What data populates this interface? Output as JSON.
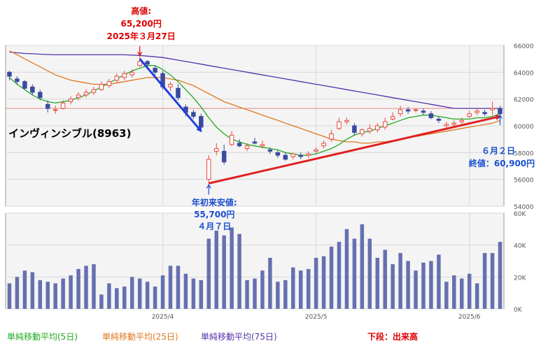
{
  "chart_data": {
    "type": "candlestick",
    "title": "インヴィンシブル(8963)",
    "price_axis": {
      "min": 54000,
      "max": 66000,
      "ticks": [
        "66000",
        "64000",
        "62000",
        "60000",
        "58000",
        "56000",
        "54000"
      ]
    },
    "volume_axis": {
      "max": 60000,
      "ticks": [
        "60K",
        "40K",
        "20K",
        "0K"
      ]
    },
    "x_labels": [
      {
        "index": 20,
        "label": "2025/4"
      },
      {
        "index": 40,
        "label": "2025/5"
      },
      {
        "index": 60,
        "label": "2025/6"
      }
    ],
    "reference_price": 61300,
    "candles": [
      [
        64000,
        64100,
        63400,
        63700
      ],
      [
        63500,
        63700,
        63100,
        63300
      ],
      [
        63300,
        63400,
        62700,
        62800
      ],
      [
        62900,
        63100,
        62300,
        62500
      ],
      [
        62500,
        62700,
        61900,
        62100
      ],
      [
        61600,
        61900,
        61000,
        61300
      ],
      [
        61200,
        61500,
        60900,
        61200
      ],
      [
        61300,
        61900,
        61200,
        61700
      ],
      [
        61800,
        62200,
        61600,
        62000
      ],
      [
        62100,
        62500,
        61900,
        62300
      ],
      [
        62300,
        62700,
        62100,
        62500
      ],
      [
        62500,
        62900,
        62300,
        62700
      ],
      [
        62700,
        63300,
        62600,
        63100
      ],
      [
        63000,
        63500,
        62800,
        63300
      ],
      [
        63400,
        63900,
        63200,
        63700
      ],
      [
        63600,
        64100,
        63400,
        63900
      ],
      [
        63800,
        64200,
        63600,
        64000
      ],
      [
        64500,
        65200,
        64400,
        64800
      ],
      [
        64800,
        64900,
        64300,
        64600
      ],
      [
        64300,
        64500,
        63800,
        64000
      ],
      [
        63900,
        64100,
        62700,
        62900
      ],
      [
        62900,
        63300,
        62600,
        63100
      ],
      [
        62800,
        63100,
        61900,
        62100
      ],
      [
        61400,
        61600,
        60700,
        61000
      ],
      [
        61000,
        61200,
        60500,
        60700
      ],
      [
        60700,
        60900,
        59600,
        59900
      ],
      [
        56000,
        57800,
        55700,
        57500
      ],
      [
        58100,
        58700,
        57800,
        58300
      ],
      [
        58100,
        58600,
        57100,
        57300
      ],
      [
        58600,
        59600,
        58500,
        59300
      ],
      [
        58700,
        59000,
        58400,
        58500
      ],
      [
        58300,
        58700,
        58100,
        58500
      ],
      [
        58800,
        59100,
        58600,
        58700
      ],
      [
        58500,
        58900,
        58300,
        58600
      ],
      [
        58200,
        58400,
        57900,
        58100
      ],
      [
        58000,
        58200,
        57600,
        57800
      ],
      [
        57800,
        58000,
        57400,
        57500
      ],
      [
        57700,
        58000,
        57500,
        57900
      ],
      [
        57800,
        58000,
        57500,
        57700
      ],
      [
        57800,
        58100,
        57600,
        57900
      ],
      [
        58100,
        58400,
        57900,
        58200
      ],
      [
        58500,
        58900,
        58300,
        58700
      ],
      [
        59000,
        59700,
        58800,
        59400
      ],
      [
        59800,
        60600,
        59700,
        60300
      ],
      [
        60300,
        60600,
        60100,
        60400
      ],
      [
        60000,
        60200,
        59300,
        59500
      ],
      [
        59400,
        59800,
        59200,
        59700
      ],
      [
        59600,
        60100,
        59400,
        59800
      ],
      [
        59700,
        60200,
        59500,
        60000
      ],
      [
        59900,
        60600,
        59700,
        60300
      ],
      [
        60500,
        61000,
        60400,
        60700
      ],
      [
        60900,
        61500,
        60700,
        61200
      ],
      [
        61200,
        61400,
        60900,
        61100
      ],
      [
        61200,
        61300,
        61000,
        61200
      ],
      [
        61100,
        61300,
        60800,
        61000
      ],
      [
        60900,
        61100,
        60500,
        60600
      ],
      [
        60500,
        60700,
        60200,
        60400
      ],
      [
        60000,
        60300,
        59800,
        60100
      ],
      [
        60100,
        60400,
        59900,
        60200
      ],
      [
        60300,
        60600,
        60100,
        60400
      ],
      [
        60700,
        61100,
        60600,
        60900
      ],
      [
        61000,
        61300,
        60800,
        61100
      ],
      [
        61000,
        61200,
        60700,
        60900
      ],
      [
        61200,
        61800,
        60800,
        61300
      ],
      [
        61300,
        61500,
        60600,
        60900
      ]
    ],
    "volumes": [
      16,
      20,
      24,
      23,
      18,
      17,
      16,
      19,
      21,
      25,
      27,
      28,
      9,
      16,
      13,
      14,
      20,
      19,
      17,
      14,
      21,
      27,
      27,
      22,
      19,
      18,
      44,
      49,
      46,
      51,
      47,
      18,
      19,
      24,
      32,
      17,
      18,
      26,
      24,
      25,
      32,
      33,
      39,
      42,
      50,
      44,
      53,
      44,
      32,
      37,
      28,
      35,
      30,
      24,
      29,
      30,
      34,
      17,
      21,
      19,
      22,
      16,
      35,
      35,
      42
    ],
    "ma5": [
      63600,
      63100,
      62700,
      62300,
      62000,
      61800,
      61700,
      61800,
      61900,
      62100,
      62300,
      62600,
      62900,
      63200,
      63500,
      63800,
      64100,
      64300,
      64500,
      64500,
      64200,
      63800,
      63300,
      62700,
      62100,
      61400,
      60600,
      59900,
      59400,
      59000,
      58800,
      58600,
      58500,
      58400,
      58300,
      58200,
      58000,
      57900,
      57800,
      57800,
      57900,
      58100,
      58300,
      58600,
      59000,
      59300,
      59500,
      59600,
      59800,
      60000,
      60200,
      60400,
      60600,
      60700,
      60800,
      60800,
      60700,
      60600,
      60500,
      60500,
      60500,
      60600,
      60600,
      60700,
      60900
    ],
    "ma25": [
      65600,
      65300,
      65000,
      64700,
      64400,
      64100,
      63800,
      63600,
      63400,
      63300,
      63200,
      63100,
      63100,
      63100,
      63200,
      63300,
      63400,
      63500,
      63600,
      63600,
      63600,
      63500,
      63400,
      63200,
      63000,
      62700,
      62400,
      62100,
      61800,
      61600,
      61400,
      61200,
      61000,
      60800,
      60600,
      60400,
      60200,
      60000,
      59800,
      59600,
      59400,
      59200,
      59000,
      58900,
      58800,
      58800,
      58700,
      58700,
      58800,
      58800,
      58900,
      59000,
      59100,
      59200,
      59300,
      59400,
      59500,
      59600,
      59700,
      59800,
      59900,
      60000,
      60100,
      60200,
      60400
    ],
    "ma75": [
      65500,
      65450,
      65400,
      65380,
      65350,
      65320,
      65300,
      65300,
      65300,
      65300,
      65300,
      65300,
      65300,
      65300,
      65300,
      65300,
      65280,
      65250,
      65200,
      65150,
      65100,
      65000,
      64900,
      64800,
      64700,
      64600,
      64500,
      64400,
      64300,
      64200,
      64100,
      64000,
      63900,
      63800,
      63700,
      63600,
      63500,
      63400,
      63300,
      63200,
      63100,
      63000,
      62900,
      62800,
      62700,
      62600,
      62500,
      62400,
      62300,
      62200,
      62100,
      62000,
      61900,
      61800,
      61700,
      61600,
      61500,
      61400,
      61300,
      61300,
      61300,
      61300,
      61300,
      61300,
      61300
    ],
    "annotations": {
      "high": {
        "lines": [
          "高値:",
          "65,200円",
          "2025年３月27日"
        ],
        "index": 17,
        "price": 65200
      },
      "low": {
        "lines": [
          "年初来安値:",
          "55,700円",
          "４月７日"
        ],
        "index": 26,
        "price": 55700
      },
      "last": {
        "lines": [
          "６月２日",
          "終値：60,900円"
        ],
        "index": 64,
        "price": 60900
      }
    },
    "trend_arrows": [
      {
        "from": [
          17,
          65000
        ],
        "to": [
          25,
          59600
        ],
        "color": "#2040d8"
      },
      {
        "from": [
          26,
          55700
        ],
        "to": [
          64,
          60700
        ],
        "color": "#e02020"
      }
    ],
    "legend": {
      "ma5": "単純移動平均(5日)",
      "ma25": "単純移動平均(25日)",
      "ma75": "単純移動平均(75日)",
      "volume": "下段：出来高"
    },
    "colors": {
      "up": "#e8483c",
      "down": "#3a4aa0",
      "ma5": "#22aa22",
      "ma25": "#e07820",
      "ma75": "#5533aa",
      "volume": "#6670b0",
      "refline": "#e88888",
      "panel": "#f4f4f4",
      "grid": "#d8d8d8"
    }
  }
}
